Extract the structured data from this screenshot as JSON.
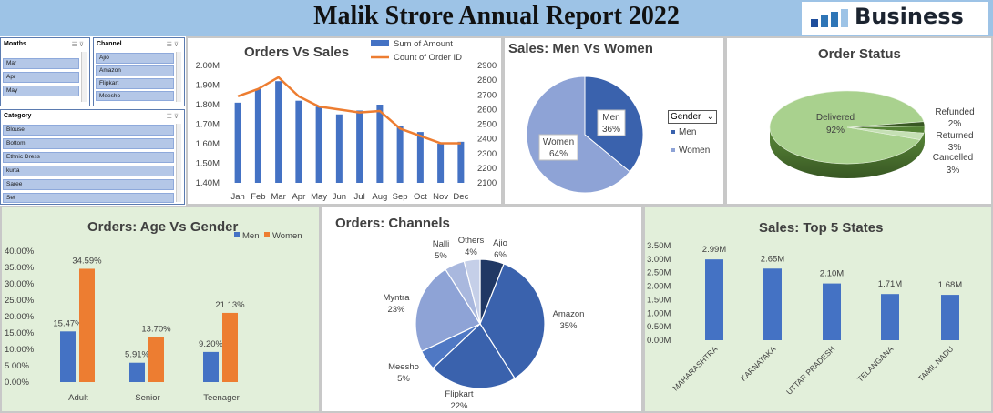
{
  "header": {
    "title": "Malik Strore Annual Report 2022",
    "logo_text": "Business"
  },
  "slicers": {
    "months": {
      "label": "Months",
      "items": [
        "Mar",
        "Apr",
        "May"
      ]
    },
    "channel": {
      "label": "Channel",
      "items": [
        "Ajio",
        "Amazon",
        "Flipkart",
        "Meesho"
      ]
    },
    "category": {
      "label": "Category",
      "items": [
        "Blouse",
        "Bottom",
        "Ethnic Dress",
        "kurta",
        "Saree",
        "Set"
      ]
    }
  },
  "gender_filter": {
    "label": "Gender"
  },
  "colors": {
    "blue": "#4472c4",
    "orange": "#ed7d31",
    "green": "#70ad47"
  },
  "chart_data": [
    {
      "id": "orders-vs-sales",
      "type": "bar",
      "title": "Orders Vs Sales",
      "categories": [
        "Jan",
        "Feb",
        "Mar",
        "Apr",
        "May",
        "Jun",
        "Jul",
        "Aug",
        "Sep",
        "Oct",
        "Nov",
        "Dec"
      ],
      "series": [
        {
          "name": "Sum of Amount",
          "type": "bar",
          "axis": "left",
          "values": [
            1.81,
            1.88,
            1.92,
            1.82,
            1.79,
            1.75,
            1.77,
            1.8,
            1.69,
            1.66,
            1.6,
            1.61
          ]
        },
        {
          "name": "Count of Order ID",
          "type": "line",
          "axis": "right",
          "values": [
            2690,
            2740,
            2820,
            2690,
            2620,
            2600,
            2580,
            2590,
            2470,
            2420,
            2370,
            2370
          ]
        }
      ],
      "left_ticks": [
        "1.40M",
        "1.50M",
        "1.60M",
        "1.70M",
        "1.80M",
        "1.90M",
        "2.00M"
      ],
      "right_ticks": [
        "2100",
        "2200",
        "2300",
        "2400",
        "2500",
        "2600",
        "2700",
        "2800",
        "2900"
      ],
      "left_range": [
        1.4,
        2.0
      ],
      "right_range": [
        2100,
        2900
      ],
      "legend": "top-right"
    },
    {
      "id": "men-vs-women",
      "type": "pie",
      "title": "Sales: Men Vs Women",
      "slices": [
        {
          "name": "Men",
          "value": 36,
          "label": "36%"
        },
        {
          "name": "Women",
          "value": 64,
          "label": "64%"
        }
      ]
    },
    {
      "id": "order-status",
      "type": "pie",
      "title": "Order Status",
      "slices": [
        {
          "name": "Delivered",
          "value": 92,
          "label": "92%"
        },
        {
          "name": "Refunded",
          "value": 2,
          "label": "2%"
        },
        {
          "name": "Returned",
          "value": 3,
          "label": "3%"
        },
        {
          "name": "Cancelled",
          "value": 3,
          "label": "3%"
        }
      ]
    },
    {
      "id": "age-vs-gender",
      "type": "bar",
      "title": "Orders: Age Vs Gender",
      "categories": [
        "Adult",
        "Senior",
        "Teenager"
      ],
      "series": [
        {
          "name": "Men",
          "values": [
            15.47,
            5.91,
            9.2
          ],
          "labels": [
            "15.47%",
            "5.91%",
            "9.20%"
          ]
        },
        {
          "name": "Women",
          "values": [
            34.59,
            13.7,
            21.13
          ],
          "labels": [
            "34.59%",
            "13.70%",
            "21.13%"
          ]
        }
      ],
      "ticks": [
        "0.00%",
        "5.00%",
        "10.00%",
        "15.00%",
        "20.00%",
        "25.00%",
        "30.00%",
        "35.00%",
        "40.00%"
      ],
      "ylim": [
        0,
        40
      ],
      "legend": "top-right"
    },
    {
      "id": "channels",
      "type": "pie",
      "title": "Orders: Channels",
      "slices": [
        {
          "name": "Ajio",
          "value": 6,
          "label": "6%"
        },
        {
          "name": "Amazon",
          "value": 35,
          "label": "35%"
        },
        {
          "name": "Flipkart",
          "value": 22,
          "label": "22%"
        },
        {
          "name": "Meesho",
          "value": 5,
          "label": "5%"
        },
        {
          "name": "Myntra",
          "value": 23,
          "label": "23%"
        },
        {
          "name": "Nalli",
          "value": 5,
          "label": "5%"
        },
        {
          "name": "Others",
          "value": 4,
          "label": "4%"
        }
      ]
    },
    {
      "id": "top-states",
      "type": "bar",
      "title": "Sales: Top 5 States",
      "categories": [
        "MAHARASHTRA",
        "KARNATAKA",
        "UTTAR PRADESH",
        "TELANGANA",
        "TAMIL NADU"
      ],
      "values": [
        2.99,
        2.65,
        2.1,
        1.71,
        1.68
      ],
      "labels": [
        "2.99M",
        "2.65M",
        "2.10M",
        "1.71M",
        "1.68M"
      ],
      "ticks": [
        "0.00M",
        "0.50M",
        "1.00M",
        "1.50M",
        "2.00M",
        "2.50M",
        "3.00M",
        "3.50M"
      ],
      "ylim": [
        0,
        3.5
      ]
    }
  ]
}
